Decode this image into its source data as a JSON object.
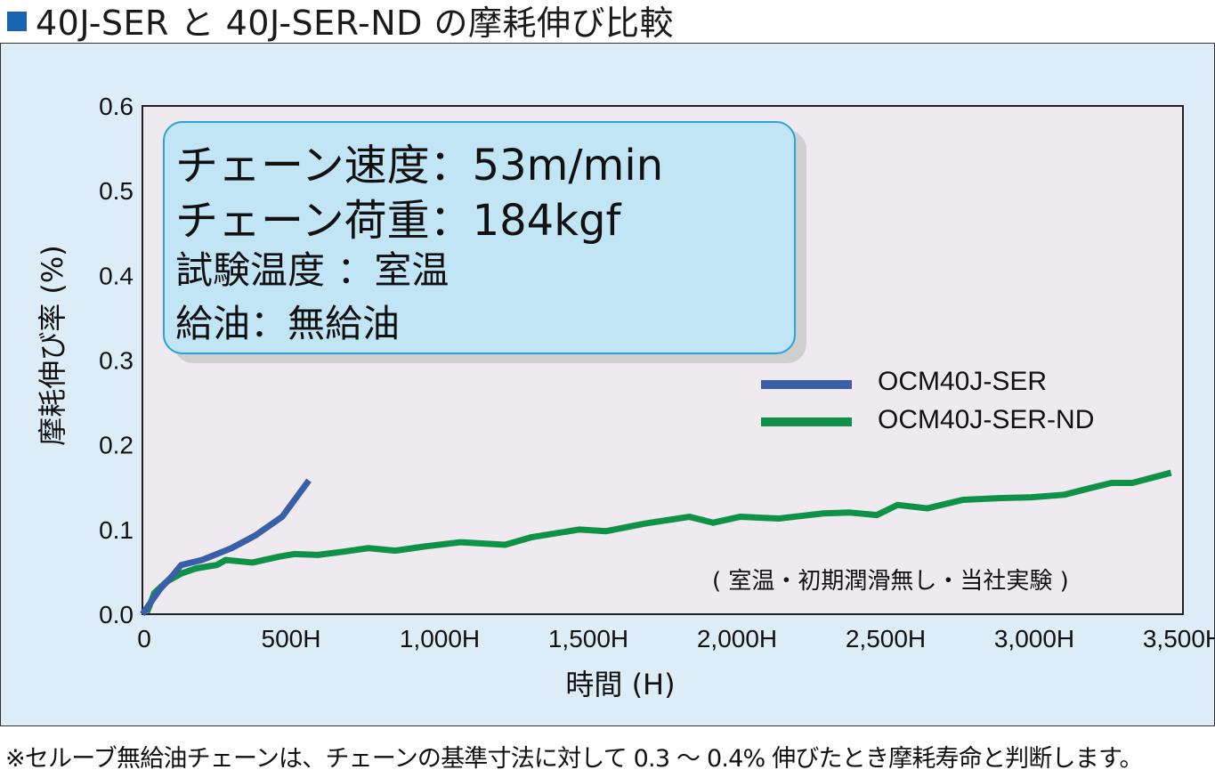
{
  "title": "40J-SER と 40J-SER-ND の摩耗伸び比較",
  "info_box": {
    "line1": "チェーン速度：53m/min",
    "line2": "チェーン荷重：184kgf",
    "line3": "試験温度 ：室温",
    "line4": "給油：無給油"
  },
  "note": "( 室温・初期潤滑無し・当社実験 )",
  "footnote": "※セルーブ無給油チェーンは、チェーンの基準寸法に対して 0.3 ～ 0.4% 伸びたとき摩耗寿命と判断します。",
  "colors": {
    "ser": "#3a5fa9",
    "ser_nd": "#0f9147",
    "plot_bg": "#efeaf0",
    "panel_bg": "#dcedf8"
  },
  "chart_data": {
    "type": "line",
    "xlabel": "時間 (H)",
    "ylabel": "摩耗伸び率 (%)",
    "xlim": [
      0,
      3500
    ],
    "ylim": [
      0,
      0.6
    ],
    "x_ticks": [
      0,
      500,
      1000,
      1500,
      2000,
      2500,
      3000,
      3500
    ],
    "x_tick_labels": [
      "0",
      "500H",
      "1,000H",
      "1,500H",
      "2,000H",
      "2,500H",
      "3,000H",
      "3,500H"
    ],
    "y_ticks": [
      0,
      0.1,
      0.2,
      0.3,
      0.4,
      0.5,
      0.6
    ],
    "y_tick_labels": [
      "0.0",
      "0.1",
      "0.2",
      "0.3",
      "0.4",
      "0.5",
      "0.6"
    ],
    "legend_position": "right",
    "series": [
      {
        "name": "OCM40J-SER",
        "color": "#3a5fa9",
        "x": [
          0,
          30,
          60,
          100,
          130,
          200,
          300,
          380,
          470,
          560
        ],
        "y": [
          0,
          0.015,
          0.03,
          0.045,
          0.058,
          0.064,
          0.078,
          0.093,
          0.115,
          0.158
        ]
      },
      {
        "name": "OCM40J-SER-ND",
        "color": "#0f9147",
        "x": [
          15,
          40,
          80,
          130,
          180,
          230,
          250,
          280,
          370,
          460,
          510,
          590,
          680,
          760,
          850,
          950,
          1070,
          1220,
          1310,
          1470,
          1560,
          1690,
          1840,
          1920,
          2010,
          2140,
          2290,
          2380,
          2470,
          2540,
          2640,
          2760,
          2880,
          2990,
          3100,
          3190,
          3260,
          3330,
          3460
        ],
        "y": [
          0.002,
          0.025,
          0.038,
          0.048,
          0.054,
          0.057,
          0.058,
          0.064,
          0.061,
          0.068,
          0.071,
          0.07,
          0.074,
          0.078,
          0.075,
          0.08,
          0.085,
          0.082,
          0.091,
          0.1,
          0.098,
          0.107,
          0.115,
          0.108,
          0.115,
          0.113,
          0.119,
          0.12,
          0.117,
          0.129,
          0.125,
          0.135,
          0.137,
          0.138,
          0.141,
          0.149,
          0.155,
          0.155,
          0.167
        ]
      }
    ]
  }
}
